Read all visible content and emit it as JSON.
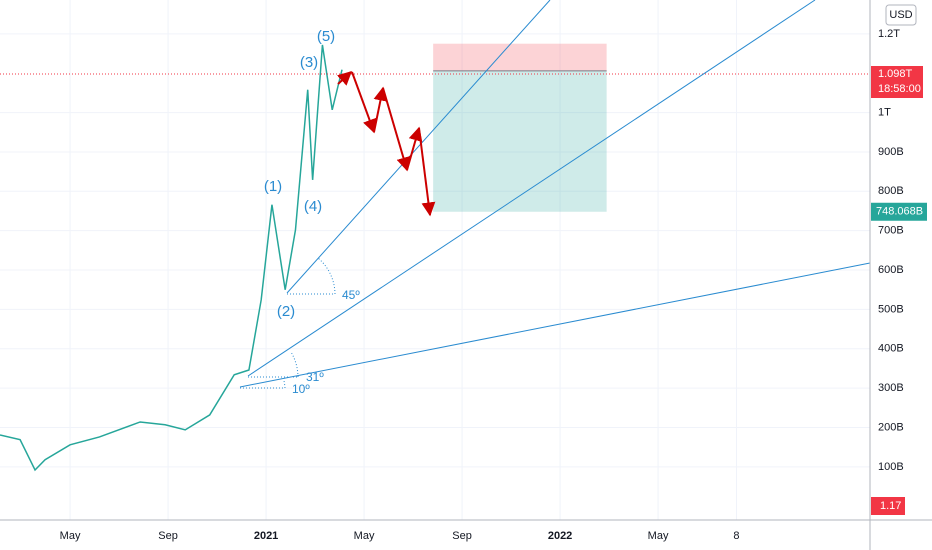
{
  "chart_data": {
    "type": "line",
    "currency": "USD",
    "x": [
      1.14,
      1.96,
      2.57,
      2.98,
      4,
      5.2,
      6.86,
      7.88,
      8.7,
      9.7,
      10.7,
      11.3,
      11.8,
      12.24,
      12.78,
      13.2,
      13.7,
      13.9,
      14.3,
      14.7,
      15.1
    ],
    "values": [
      181,
      169,
      92,
      118,
      156,
      176,
      214,
      207,
      194,
      232,
      334,
      346,
      524,
      766,
      550,
      702,
      1058,
      829,
      1172,
      1007,
      1109
    ],
    "color": "#26a69a",
    "xlim": [
      1.14,
      36.65
    ],
    "ylim": [
      -35,
      1286
    ],
    "xticks": [
      {
        "value": 4,
        "label": "May"
      },
      {
        "value": 8,
        "label": "Sep"
      },
      {
        "value": 12,
        "label": "2021"
      },
      {
        "value": 16,
        "label": "May"
      },
      {
        "value": 20,
        "label": "Sep"
      },
      {
        "value": 24,
        "label": "2022"
      },
      {
        "value": 28,
        "label": "May"
      },
      {
        "value": 31.2,
        "label": "8"
      }
    ],
    "yticks": [
      {
        "value": 100,
        "label": "100B"
      },
      {
        "value": 200,
        "label": "200B"
      },
      {
        "value": 300,
        "label": "300B"
      },
      {
        "value": 400,
        "label": "400B"
      },
      {
        "value": 500,
        "label": "500B"
      },
      {
        "value": 600,
        "label": "600B"
      },
      {
        "value": 700,
        "label": "700B"
      },
      {
        "value": 800,
        "label": "800B"
      },
      {
        "value": 900,
        "label": "900B"
      },
      {
        "value": 1000,
        "label": "1T"
      },
      {
        "value": 1200,
        "label": "1.2T"
      }
    ],
    "grid": true,
    "last_price": {
      "value": 1098,
      "label": "1.098T"
    },
    "countdown": "18:58:00",
    "position": {
      "x": [
        18.82,
        25.9
      ],
      "stop": 1175,
      "entry": 1106,
      "target": {
        "value": 748.068,
        "label": "748.068B"
      }
    },
    "indicator_label": "1.17",
    "wave_labels": [
      "(1)",
      "(2)",
      "(3)",
      "(4)",
      "(5)"
    ],
    "angle_labels": [
      "45º",
      "31º",
      "10º"
    ]
  }
}
